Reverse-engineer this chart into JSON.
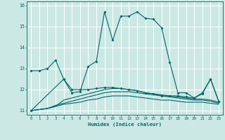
{
  "xlabel": "Humidex (Indice chaleur)",
  "bg_color": "#cce8e4",
  "line_color": "#006666",
  "grid_color": "#ffffff",
  "xlim": [
    -0.5,
    23.5
  ],
  "ylim": [
    10.8,
    16.2
  ],
  "yticks": [
    11,
    12,
    13,
    14,
    15,
    16
  ],
  "xticks": [
    0,
    1,
    2,
    3,
    4,
    5,
    6,
    7,
    8,
    9,
    10,
    11,
    12,
    13,
    14,
    15,
    16,
    17,
    18,
    19,
    20,
    21,
    22,
    23
  ],
  "series": [
    {
      "x": [
        0,
        1,
        2,
        3,
        4,
        5,
        6,
        7,
        8,
        9,
        10,
        11,
        12,
        13,
        14,
        15,
        16,
        17,
        18,
        19,
        20,
        21,
        22,
        23
      ],
      "y": [
        12.9,
        12.9,
        13.0,
        13.4,
        12.5,
        11.85,
        11.9,
        13.1,
        13.35,
        15.7,
        14.35,
        15.5,
        15.5,
        15.7,
        15.4,
        15.35,
        14.95,
        13.3,
        11.85,
        11.85,
        11.6,
        11.8,
        12.5,
        11.45
      ],
      "markers": true
    },
    {
      "x": [
        0,
        4,
        5,
        6,
        7,
        8,
        9,
        10,
        11,
        12,
        13,
        14,
        15,
        16,
        17,
        18,
        19,
        20,
        21,
        22,
        23
      ],
      "y": [
        11.0,
        12.5,
        12.0,
        12.0,
        12.0,
        12.05,
        12.1,
        12.1,
        12.05,
        12.0,
        11.95,
        11.85,
        11.8,
        11.7,
        11.7,
        11.7,
        11.65,
        11.6,
        11.85,
        12.5,
        11.45
      ],
      "markers": true
    },
    {
      "x": [
        0,
        1,
        2,
        3,
        4,
        5,
        6,
        7,
        8,
        9,
        10,
        11,
        12,
        13,
        14,
        15,
        16,
        17,
        18,
        19,
        20,
        21,
        22,
        23
      ],
      "y": [
        11.0,
        11.05,
        11.1,
        11.2,
        11.5,
        11.6,
        11.7,
        11.8,
        11.9,
        12.0,
        12.05,
        12.05,
        12.0,
        11.95,
        11.85,
        11.8,
        11.75,
        11.7,
        11.65,
        11.6,
        11.55,
        11.55,
        11.5,
        11.4
      ],
      "markers": false
    },
    {
      "x": [
        0,
        1,
        2,
        3,
        4,
        5,
        6,
        7,
        8,
        9,
        10,
        11,
        12,
        13,
        14,
        15,
        16,
        17,
        18,
        19,
        20,
        21,
        22,
        23
      ],
      "y": [
        11.0,
        11.05,
        11.1,
        11.25,
        11.35,
        11.45,
        11.55,
        11.65,
        11.75,
        11.85,
        11.9,
        11.9,
        11.9,
        11.85,
        11.8,
        11.75,
        11.7,
        11.65,
        11.6,
        11.55,
        11.5,
        11.5,
        11.45,
        11.35
      ],
      "markers": false
    },
    {
      "x": [
        0,
        1,
        2,
        3,
        4,
        5,
        6,
        7,
        8,
        9,
        10,
        11,
        12,
        13,
        14,
        15,
        16,
        17,
        18,
        19,
        20,
        21,
        22,
        23
      ],
      "y": [
        11.0,
        11.05,
        11.1,
        11.2,
        11.3,
        11.35,
        11.4,
        11.5,
        11.55,
        11.65,
        11.7,
        11.7,
        11.7,
        11.65,
        11.6,
        11.55,
        11.5,
        11.5,
        11.45,
        11.4,
        11.4,
        11.4,
        11.35,
        11.3
      ],
      "markers": false
    }
  ]
}
